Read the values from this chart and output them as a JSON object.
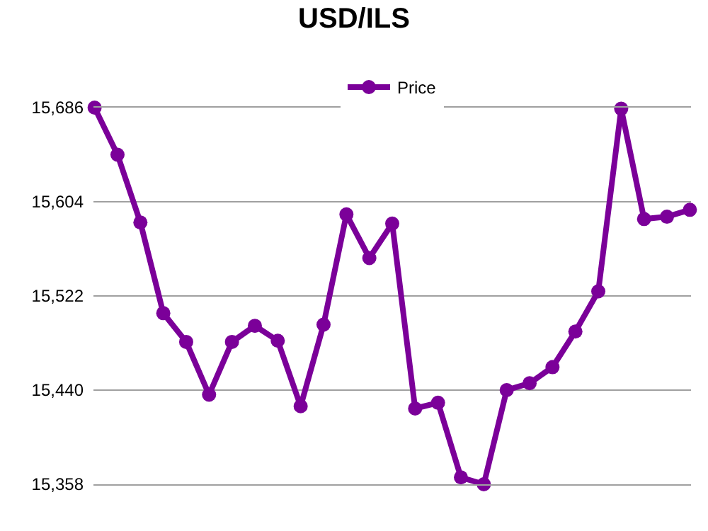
{
  "chart_data": {
    "type": "line",
    "title": "USD/ILS",
    "categories": [
      null,
      null,
      null,
      null,
      null,
      null,
      null,
      null,
      null,
      null,
      null,
      null,
      null,
      null,
      null,
      null,
      null,
      null,
      null,
      null,
      null,
      null,
      null,
      null,
      null,
      null,
      null
    ],
    "series": [
      {
        "name": "Price",
        "color": "#7b0099",
        "values": [
          15686,
          15645,
          15586,
          15507,
          15482,
          15436,
          15482,
          15496,
          15483,
          15426,
          15497,
          15593,
          15555,
          15585,
          15424,
          15429,
          15364,
          15358,
          15440,
          15446,
          15460,
          15491,
          15526,
          15685,
          15589,
          15591,
          15597
        ]
      }
    ],
    "ylim": [
      15358,
      15686
    ],
    "yticks": [
      {
        "value": 15358,
        "label": "15,358"
      },
      {
        "value": 15440,
        "label": "15,440"
      },
      {
        "value": 15522,
        "label": "15,522"
      },
      {
        "value": 15604,
        "label": "15,604"
      },
      {
        "value": 15686,
        "label": "15,686"
      }
    ],
    "grid": "y",
    "legend": "top",
    "marker": "circle",
    "line_style": "solid"
  }
}
